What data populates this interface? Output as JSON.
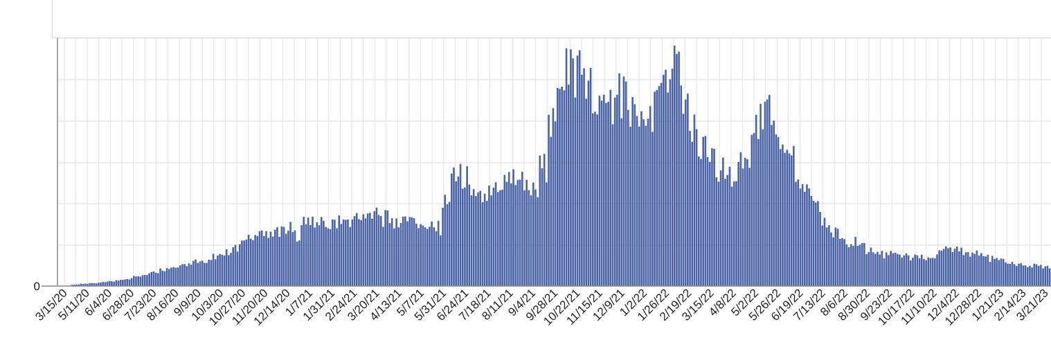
{
  "chart_data": {
    "type": "bar",
    "title": "",
    "xlabel": "",
    "ylabel": "",
    "bar_color": "#4a63a6",
    "grid": true,
    "y_ticks": [
      "0"
    ],
    "x_tick_labels": [
      "3/15/20",
      "5/11/20",
      "6/4/20",
      "6/28/20",
      "7/23/20",
      "8/16/20",
      "9/9/20",
      "10/3/20",
      "10/27/20",
      "11/20/20",
      "12/14/20",
      "1/7/21",
      "1/31/21",
      "2/24/21",
      "3/20/21",
      "4/13/21",
      "5/7/21",
      "5/31/21",
      "6/24/21",
      "7/18/21",
      "8/11/21",
      "9/4/21",
      "9/28/21",
      "10/22/21",
      "11/15/21",
      "12/9/21",
      "1/2/22",
      "1/26/22",
      "2/19/22",
      "3/15/22",
      "4/8/22",
      "5/2/22",
      "5/26/22",
      "6/19/22",
      "7/13/22",
      "8/6/22",
      "8/30/22",
      "9/23/22",
      "10/17/22",
      "11/10/22",
      "12/4/22",
      "12/28/22",
      "1/21/23",
      "2/14/23",
      "3/21/23"
    ],
    "series": [
      {
        "values": [
          0.5,
          2,
          3,
          4,
          5,
          6,
          8,
          10,
          14,
          17,
          20,
          23,
          26,
          28,
          31,
          33,
          36,
          39,
          45,
          52,
          58,
          63,
          68,
          74,
          77,
          78,
          70,
          92,
          88,
          86,
          84,
          88,
          91,
          94,
          95,
          96,
          92,
          90,
          92,
          94,
          88,
          84,
          79,
          113,
          145,
          149,
          129,
          118,
          122,
          130,
          145,
          150,
          145,
          128,
          162,
          216,
          292,
          305,
          294,
          271,
          245,
          232,
          252,
          262,
          245,
          234,
          221,
          254,
          283,
          297,
          255,
          208,
          188,
          170,
          160,
          155,
          162,
          182,
          216,
          246,
          232,
          206,
          181,
          148,
          123,
          105,
          84,
          72,
          65,
          60,
          52,
          49,
          45,
          43,
          41,
          41,
          39,
          38,
          40,
          45,
          49,
          48,
          46,
          45,
          42,
          37,
          34,
          31,
          30,
          29,
          28,
          27
        ]
      }
    ]
  }
}
